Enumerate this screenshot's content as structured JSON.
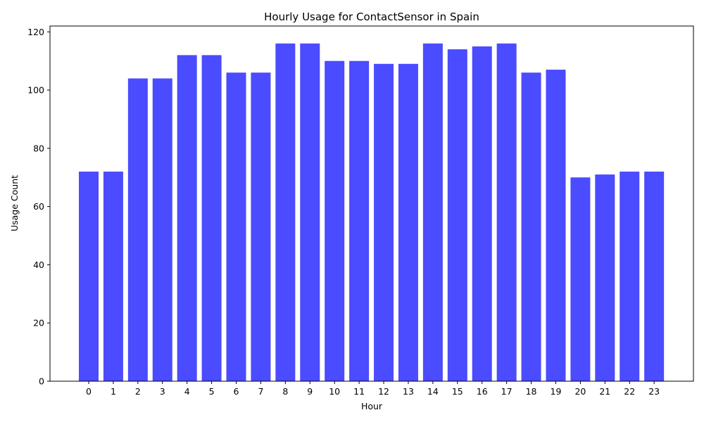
{
  "chart_data": {
    "type": "bar",
    "title": "Hourly Usage for ContactSensor in Spain",
    "xlabel": "Hour",
    "ylabel": "Usage Count",
    "categories": [
      "0",
      "1",
      "2",
      "3",
      "4",
      "5",
      "6",
      "7",
      "8",
      "9",
      "10",
      "11",
      "12",
      "13",
      "14",
      "15",
      "16",
      "17",
      "18",
      "19",
      "20",
      "21",
      "22",
      "23"
    ],
    "values": [
      72,
      72,
      104,
      104,
      112,
      112,
      106,
      106,
      116,
      116,
      110,
      110,
      109,
      109,
      116,
      114,
      115,
      116,
      106,
      107,
      70,
      71,
      72,
      72
    ],
    "ylim": [
      0,
      122
    ],
    "yticks": [
      0,
      20,
      40,
      60,
      80,
      100,
      120
    ],
    "bar_color": "#4b4bff",
    "grid": false,
    "legend": "none"
  }
}
